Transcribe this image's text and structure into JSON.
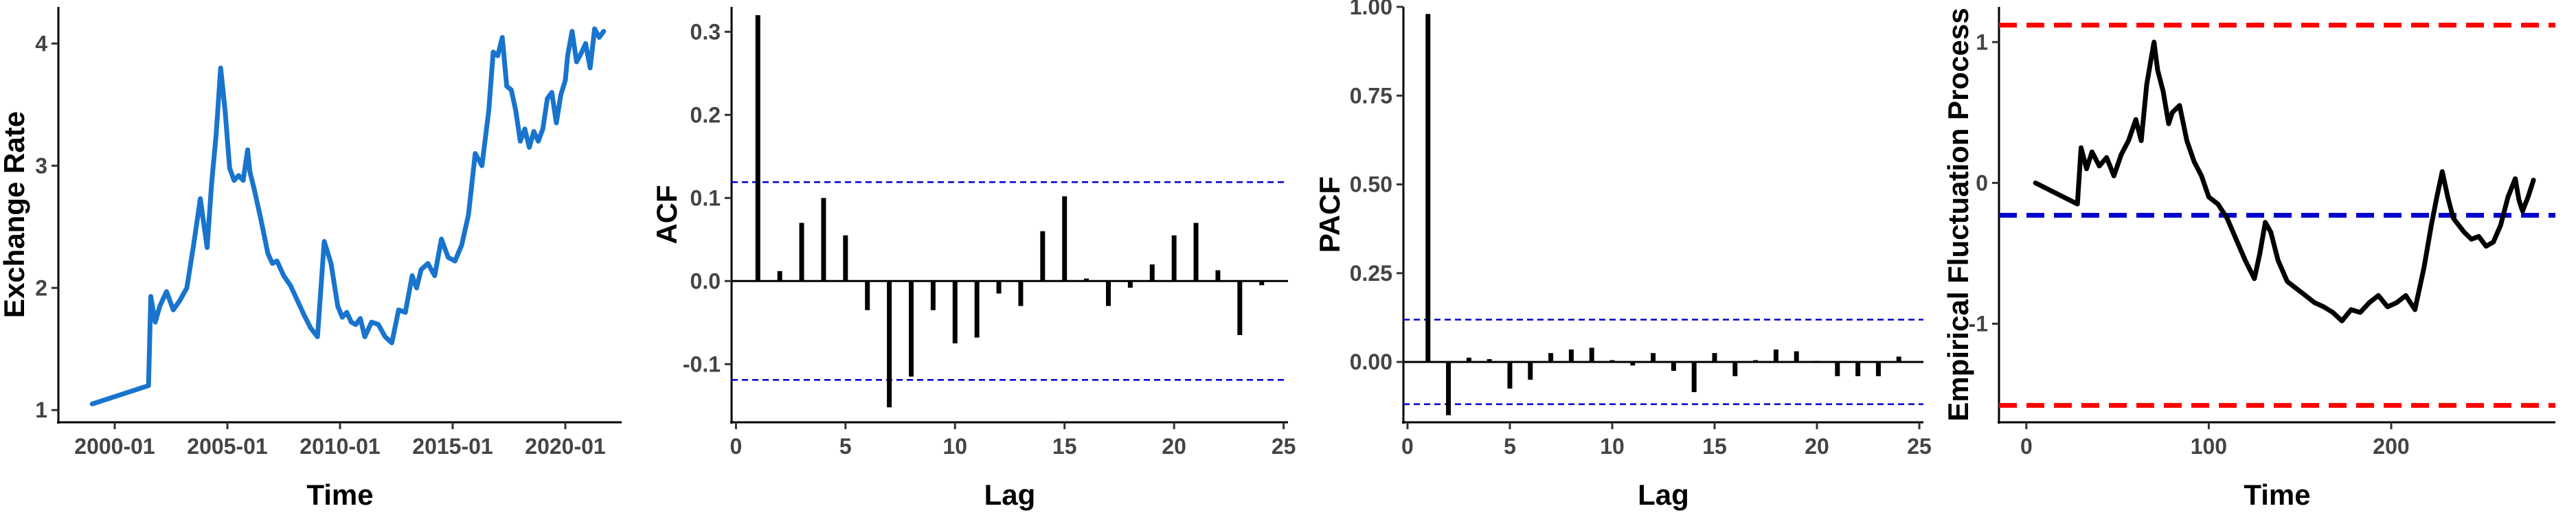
{
  "chart_data": [
    {
      "type": "line",
      "title": "",
      "xlabel": "Time",
      "ylabel": "Exchange Rate",
      "xlim": [
        1997.5,
        2022.5
      ],
      "ylim": [
        0.9,
        4.3
      ],
      "x_ticks": [
        2000,
        2005,
        2010,
        2015,
        2020
      ],
      "x_tick_labels": [
        "2000-01",
        "2005-01",
        "2010-01",
        "2015-01",
        "2020-01"
      ],
      "y_ticks": [
        1,
        2,
        3,
        4
      ],
      "y_tick_labels": [
        "1",
        "2",
        "3",
        "4"
      ],
      "grid": false,
      "colors": {
        "line": "#1874CD"
      },
      "series": [
        {
          "x": [
            1999.0,
            2001.5,
            2001.6,
            2001.8,
            2002.0,
            2002.3,
            2002.6,
            2002.9,
            2003.2,
            2003.5,
            2003.8,
            2004.1,
            2004.3,
            2004.5,
            2004.7,
            2004.9,
            2005.1,
            2005.3,
            2005.5,
            2005.7,
            2005.9,
            2006.0,
            2006.2,
            2006.5,
            2006.8,
            2007.0,
            2007.2,
            2007.5,
            2007.8,
            2008.1,
            2008.4,
            2008.7,
            2009.0,
            2009.3,
            2009.6,
            2009.9,
            2010.1,
            2010.3,
            2010.5,
            2010.7,
            2010.9,
            2011.1,
            2011.4,
            2011.7,
            2012.0,
            2012.3,
            2012.6,
            2012.9,
            2013.2,
            2013.4,
            2013.6,
            2013.9,
            2014.2,
            2014.5,
            2014.8,
            2015.1,
            2015.4,
            2015.7,
            2016.0,
            2016.3,
            2016.6,
            2016.8,
            2017.0,
            2017.2,
            2017.4,
            2017.6,
            2017.8,
            2018.0,
            2018.2,
            2018.4,
            2018.6,
            2018.8,
            2019.0,
            2019.2,
            2019.4,
            2019.6,
            2019.8,
            2020.0,
            2020.1,
            2020.3,
            2020.5,
            2020.7,
            2020.9,
            2021.1,
            2021.3,
            2021.5,
            2021.7
          ],
          "y": [
            1.05,
            1.2,
            1.93,
            1.72,
            1.85,
            1.97,
            1.82,
            1.9,
            2.0,
            2.35,
            2.73,
            2.33,
            2.85,
            3.25,
            3.8,
            3.45,
            2.98,
            2.88,
            2.92,
            2.88,
            3.13,
            2.95,
            2.8,
            2.55,
            2.28,
            2.2,
            2.22,
            2.1,
            2.02,
            1.9,
            1.78,
            1.67,
            1.6,
            2.38,
            2.2,
            1.85,
            1.76,
            1.8,
            1.72,
            1.7,
            1.75,
            1.6,
            1.72,
            1.7,
            1.6,
            1.55,
            1.82,
            1.8,
            2.1,
            2.0,
            2.15,
            2.2,
            2.1,
            2.4,
            2.25,
            2.22,
            2.35,
            2.6,
            3.1,
            3.0,
            3.45,
            3.93,
            3.9,
            4.05,
            3.65,
            3.62,
            3.45,
            3.2,
            3.3,
            3.15,
            3.28,
            3.2,
            3.3,
            3.55,
            3.6,
            3.35,
            3.58,
            3.7,
            3.9,
            4.1,
            3.85,
            3.92,
            4.0,
            3.8,
            4.12,
            4.05,
            4.1
          ]
        }
      ]
    },
    {
      "type": "bar",
      "title": "",
      "xlabel": "Lag",
      "ylabel": "ACF",
      "xlim": [
        -0.2,
        25.2
      ],
      "ylim": [
        -0.17,
        0.33
      ],
      "x_ticks": [
        0,
        5,
        10,
        15,
        20,
        25
      ],
      "x_tick_labels": [
        "0",
        "5",
        "10",
        "15",
        "20",
        "25"
      ],
      "y_ticks": [
        -0.1,
        0.0,
        0.1,
        0.2,
        0.3
      ],
      "y_tick_labels": [
        "-0.1",
        "0.0",
        "0.1",
        "0.2",
        "0.3"
      ],
      "ci": 0.119,
      "grid": false,
      "colors": {
        "bar": "#000000",
        "ci": "#0000CD"
      },
      "lags": [
        1,
        2,
        3,
        4,
        5,
        6,
        7,
        8,
        9,
        10,
        11,
        12,
        13,
        14,
        15,
        16,
        17,
        18,
        19,
        20,
        21,
        22,
        23,
        24
      ],
      "values": [
        0.32,
        0.012,
        0.07,
        0.1,
        0.055,
        -0.035,
        -0.152,
        -0.115,
        -0.035,
        -0.075,
        -0.068,
        -0.015,
        -0.03,
        0.06,
        0.102,
        0.003,
        -0.03,
        -0.008,
        0.02,
        0.055,
        0.07,
        0.013,
        -0.065,
        -0.005
      ]
    },
    {
      "type": "bar",
      "title": "",
      "xlabel": "Lag",
      "ylabel": "PACF",
      "xlim": [
        -0.2,
        25.2
      ],
      "ylim": [
        -0.17,
        1.0
      ],
      "x_ticks": [
        0,
        5,
        10,
        15,
        20,
        25
      ],
      "x_tick_labels": [
        "0",
        "5",
        "10",
        "15",
        "20",
        "25"
      ],
      "y_ticks": [
        0.0,
        0.25,
        0.5,
        0.75,
        1.0
      ],
      "y_tick_labels": [
        "0.00",
        "0.25",
        "0.50",
        "0.75",
        "1.00"
      ],
      "ci": 0.119,
      "grid": false,
      "colors": {
        "bar": "#000000",
        "ci": "#0000CD"
      },
      "lags": [
        1,
        2,
        3,
        4,
        5,
        6,
        7,
        8,
        9,
        10,
        11,
        12,
        13,
        14,
        15,
        16,
        17,
        18,
        19,
        20,
        21,
        22,
        23,
        24
      ],
      "values": [
        0.98,
        -0.15,
        0.012,
        0.008,
        -0.075,
        -0.05,
        0.025,
        0.035,
        0.04,
        0.005,
        -0.01,
        0.025,
        -0.025,
        -0.085,
        0.025,
        -0.04,
        0.005,
        0.035,
        0.03,
        0.003,
        -0.04,
        -0.04,
        -0.04,
        0.015
      ]
    },
    {
      "type": "line",
      "title": "",
      "xlabel": "Time",
      "ylabel": "Empirical Fluctuation Process",
      "xlim": [
        -15,
        290
      ],
      "ylim": [
        -1.7,
        1.25
      ],
      "x_ticks": [
        0,
        100,
        200
      ],
      "x_tick_labels": [
        "0",
        "100",
        "200"
      ],
      "y_ticks": [
        -1,
        0,
        1
      ],
      "y_tick_labels": [
        "-1",
        "0",
        "1"
      ],
      "hlines": [
        {
          "y": 1.12,
          "color": "#FF0000",
          "style": "dashed"
        },
        {
          "y": -1.58,
          "color": "#FF0000",
          "style": "dashed"
        },
        {
          "y": -0.23,
          "color": "#0000CD",
          "style": "dashed"
        }
      ],
      "grid": false,
      "colors": {
        "line": "#000000"
      },
      "series": [
        {
          "x": [
            5,
            28,
            30,
            33,
            36,
            40,
            44,
            48,
            52,
            56,
            60,
            63,
            66,
            68,
            70,
            72,
            75,
            78,
            80,
            84,
            88,
            92,
            96,
            100,
            105,
            110,
            115,
            120,
            125,
            128,
            131,
            134,
            138,
            143,
            148,
            153,
            158,
            163,
            168,
            173,
            178,
            183,
            188,
            193,
            198,
            203,
            208,
            213,
            218,
            222,
            225,
            228,
            231,
            234,
            237,
            240,
            244,
            248,
            252,
            256,
            260,
            264,
            268,
            270,
            272,
            275,
            278
          ],
          "y": [
            0.0,
            -0.15,
            0.25,
            0.1,
            0.22,
            0.12,
            0.18,
            0.05,
            0.2,
            0.3,
            0.45,
            0.3,
            0.7,
            0.85,
            1.0,
            0.8,
            0.65,
            0.42,
            0.5,
            0.55,
            0.3,
            0.15,
            0.05,
            -0.1,
            -0.15,
            -0.25,
            -0.4,
            -0.55,
            -0.68,
            -0.5,
            -0.28,
            -0.35,
            -0.55,
            -0.7,
            -0.75,
            -0.8,
            -0.85,
            -0.88,
            -0.92,
            -0.98,
            -0.9,
            -0.92,
            -0.85,
            -0.8,
            -0.88,
            -0.85,
            -0.8,
            -0.9,
            -0.6,
            -0.3,
            -0.1,
            0.08,
            -0.1,
            -0.25,
            -0.3,
            -0.35,
            -0.4,
            -0.38,
            -0.45,
            -0.42,
            -0.3,
            -0.1,
            0.03,
            -0.12,
            -0.2,
            -0.1,
            0.02
          ]
        }
      ]
    }
  ]
}
